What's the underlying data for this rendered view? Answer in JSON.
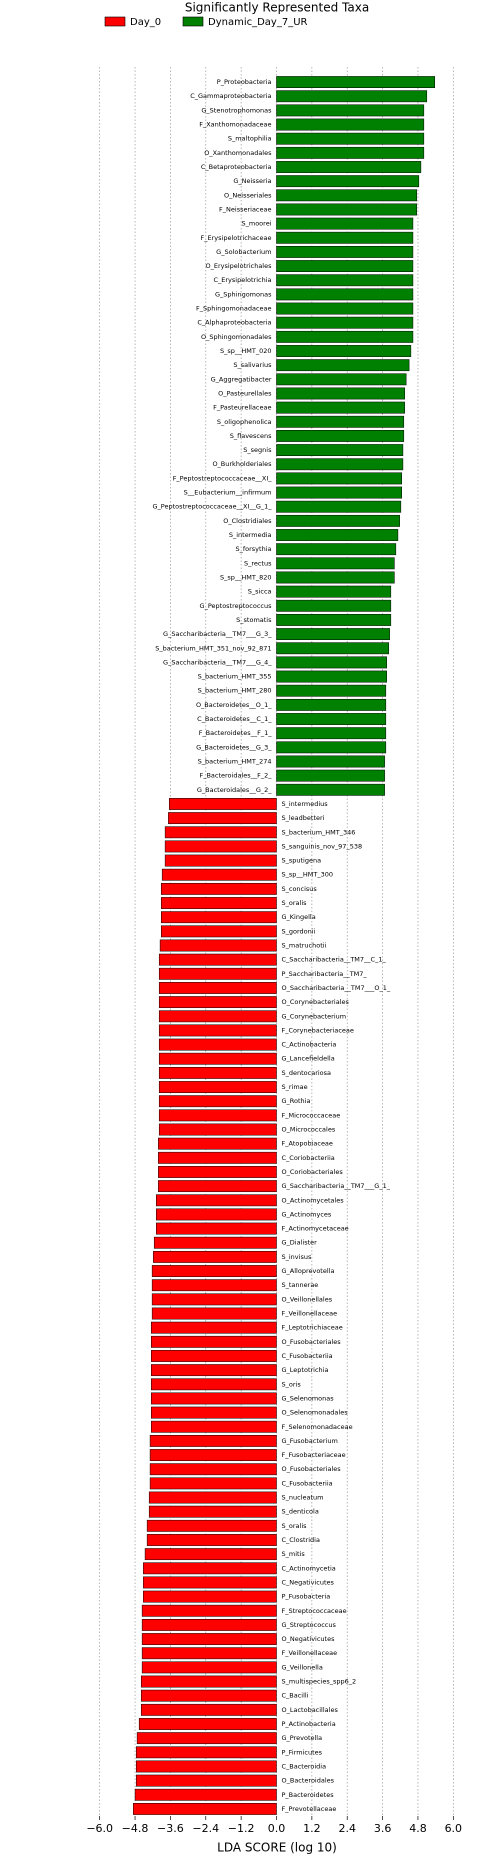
{
  "chart_data": {
    "type": "hbar",
    "title": "Significantly Represented Taxa",
    "x_label": "LDA SCORE (log 10)",
    "categories": [
      "P_Proteobacteria",
      "C_Gammaproteobacteria",
      "G_Stenotrophomonas",
      "F_Xanthomonadaceae",
      "S_maltophilia",
      "O_Xanthomonadales",
      "C_Betaproteobacteria",
      "G_Neisseria",
      "O_Neisseriales",
      "F_Neisseriaceae",
      "S_moorei",
      "F_Erysipelotrichaceae",
      "G_Solobacterium",
      "O_Erysipelotrichales",
      "C_Erysipelotrichia",
      "G_Sphingomonas",
      "F_Sphingomonadaceae",
      "C_Alphaproteobacteria",
      "O_Sphingomonadales",
      "S_sp__HMT_020",
      "S_salivarius",
      "G_Aggregatibacter",
      "O_Pasteurellales",
      "F_Pasteurellaceae",
      "S_oligophenolica",
      "S_flavescens",
      "S_segnis",
      "O_Burkholderiales",
      "F_Peptostreptococcaceae__XI_",
      "S__Eubacterium__infirmum",
      "G_Peptostreptococcaceae__XI__G_1_",
      "O_Clostridiales",
      "S_intermedia",
      "S_forsythia",
      "S_rectus",
      "S_sp__HMT_820",
      "S_sicca",
      "G_Peptostreptococcus",
      "S_stomatis",
      "G_Saccharibacteria__TM7___G_3_",
      "S_bacterium_HMT_351_nov_92_871",
      "G_Saccharibacteria__TM7___G_4_",
      "S_bacterium_HMT_355",
      "S_bacterium_HMT_280",
      "O_Bacteroidetes__O_1_",
      "C_Bacteroidetes__C_1_",
      "F_Bacteroidetes__F_1_",
      "G_Bacteroidetes__G_3_",
      "S_bacterium_HMT_274",
      "F_Bacteroidales__F_2_",
      "G_Bacteroidales__G_2_",
      "S_intermedius",
      "S_leadbetteri",
      "S_bacterium_HMT_346",
      "S_sanguinis_nov_97_538",
      "S_sputigena",
      "S_sp__HMT_300",
      "S_concisus",
      "S_oralis",
      "G_Kingella",
      "S_gordonii",
      "S_matruchotii",
      "C_Saccharibacteria__TM7__C_1_",
      "P_Saccharibacteria__TM7_",
      "O_Saccharibacteria__TM7___O_1_",
      "O_Corynebacteriales",
      "G_Corynebacterium",
      "F_Corynebacteriaceae",
      "C_Actinobacteria",
      "G_Lancefieldella",
      "S_dentocariosa",
      "S_rimae",
      "G_Rothia",
      "F_Micrococcaceae",
      "O_Micrococcales",
      "F_Atopobiaceae",
      "C_Coriobacteriia",
      "O_Coriobacteriales",
      "G_Saccharibacteria__TM7___G_1_",
      "O_Actinomycetales",
      "G_Actinomyces",
      "F_Actinomycetaceae",
      "G_Dialister",
      "S_invisus",
      "G_Alloprevotella",
      "S_tannerae",
      "O_Veillonellales",
      "F_Veillonellaceae",
      "F_Leptotrichiaceae",
      "O_Fusobacteriales",
      "C_Fusobacteriia",
      "G_Leptotrichia",
      "S_oris",
      "G_Selenomonas",
      "O_Selenomonadales",
      "F_Selenomonadaceae",
      "G_Fusobacterium",
      "F_Fusobacteriaceae",
      "O_Fusobacteriales",
      "C_Fusobacteriia",
      "S_nucleatum",
      "S_denticola",
      "S_oralis",
      "C_Clostridia",
      "S_mitis",
      "C_Actinomycetia",
      "C_Negativicutes",
      "P_Fusobacteria",
      "F_Streptococcaceae",
      "G_Streptococcus",
      "O_Negativicutes",
      "F_Veillonellaceae",
      "G_Veillonella",
      "S_multispecies_spp6_2",
      "C_Bacilli",
      "O_Lactobacillales",
      "P_Actinobacteria",
      "G_Prevotella",
      "P_Firmicutes",
      "C_Bacteroidia",
      "O_Bacteroidales",
      "P_Bacteroidetes",
      "F_Prevotellaceae"
    ],
    "series": [
      {
        "name": "Day_0",
        "color": "#ff0000",
        "values": [
          null,
          null,
          null,
          null,
          null,
          null,
          null,
          null,
          null,
          null,
          null,
          null,
          null,
          null,
          null,
          null,
          null,
          null,
          null,
          null,
          null,
          null,
          null,
          null,
          null,
          null,
          null,
          null,
          null,
          null,
          null,
          null,
          null,
          null,
          null,
          null,
          null,
          null,
          null,
          null,
          null,
          null,
          null,
          null,
          null,
          null,
          null,
          null,
          null,
          null,
          null,
          -3.64,
          -3.67,
          -3.78,
          -3.78,
          -3.78,
          -3.88,
          -3.91,
          -3.91,
          -3.91,
          -3.91,
          -3.95,
          -3.98,
          -3.98,
          -3.98,
          -3.98,
          -3.98,
          -3.98,
          -3.98,
          -3.98,
          -3.98,
          -3.98,
          -3.98,
          -3.98,
          -3.98,
          -4.01,
          -4.01,
          -4.01,
          -4.01,
          -4.08,
          -4.08,
          -4.08,
          -4.15,
          -4.18,
          -4.22,
          -4.22,
          -4.22,
          -4.22,
          -4.25,
          -4.25,
          -4.25,
          -4.25,
          -4.25,
          -4.25,
          -4.25,
          -4.25,
          -4.29,
          -4.29,
          -4.29,
          -4.29,
          -4.32,
          -4.32,
          -4.39,
          -4.39,
          -4.46,
          -4.52,
          -4.52,
          -4.52,
          -4.56,
          -4.56,
          -4.56,
          -4.56,
          -4.56,
          -4.59,
          -4.59,
          -4.59,
          -4.66,
          -4.73,
          -4.76,
          -4.76,
          -4.76,
          -4.8,
          -4.86
        ]
      },
      {
        "name": "Dynamic_Day_7_UR",
        "color": "#008000",
        "values": [
          5.37,
          5.1,
          5.0,
          5.0,
          5.0,
          5.0,
          4.9,
          4.83,
          4.76,
          4.76,
          4.63,
          4.63,
          4.63,
          4.63,
          4.63,
          4.63,
          4.63,
          4.63,
          4.63,
          4.56,
          4.5,
          4.4,
          4.35,
          4.35,
          4.32,
          4.32,
          4.29,
          4.29,
          4.25,
          4.25,
          4.22,
          4.18,
          4.12,
          4.05,
          4.0,
          4.0,
          3.88,
          3.88,
          3.88,
          3.84,
          3.81,
          3.74,
          3.74,
          3.71,
          3.71,
          3.71,
          3.71,
          3.71,
          3.67,
          3.67,
          3.67,
          null,
          null,
          null,
          null,
          null,
          null,
          null,
          null,
          null,
          null,
          null,
          null,
          null,
          null,
          null,
          null,
          null,
          null,
          null,
          null,
          null,
          null,
          null,
          null,
          null,
          null,
          null,
          null,
          null,
          null,
          null,
          null,
          null,
          null,
          null,
          null,
          null,
          null,
          null,
          null,
          null,
          null,
          null,
          null,
          null,
          null,
          null,
          null,
          null,
          null,
          null,
          null,
          null,
          null,
          null,
          null,
          null,
          null,
          null,
          null,
          null,
          null,
          null,
          null,
          null,
          null,
          null,
          null,
          null,
          null,
          null,
          null
        ]
      }
    ],
    "xlim": [
      -6.6,
      6.6
    ],
    "xticks": [
      {
        "value": -6.0,
        "label": "−6.0"
      },
      {
        "value": -4.8,
        "label": "−4.8"
      },
      {
        "value": -3.6,
        "label": "−3.6"
      },
      {
        "value": -2.4,
        "label": "−2.4"
      },
      {
        "value": -1.2,
        "label": "−1.2"
      },
      {
        "value": 0,
        "label": "0.0"
      },
      1.2,
      2.4,
      3.6,
      4.8,
      {
        "value": 6.0,
        "label": "6.0"
      }
    ],
    "grid": true,
    "legend": "top"
  }
}
